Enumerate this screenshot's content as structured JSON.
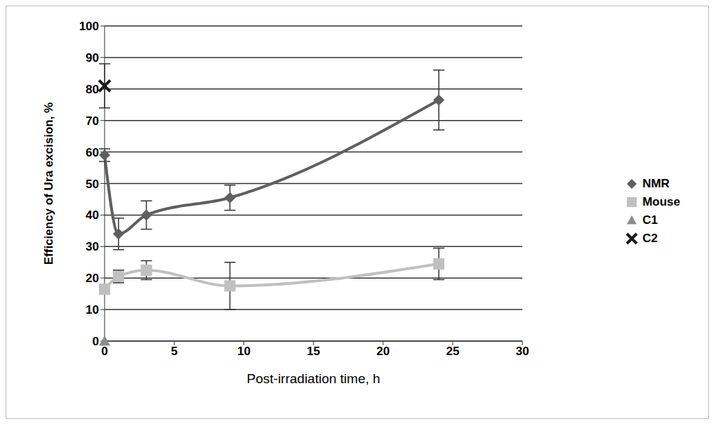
{
  "chart_data": {
    "type": "line",
    "x_label": "Post-irradiation time, h",
    "y_label": "Efficiency of Ura excision, %",
    "xlim": [
      0,
      30
    ],
    "xticks": [
      0,
      5,
      10,
      15,
      20,
      25,
      30
    ],
    "ylim": [
      0,
      100
    ],
    "yticks": [
      0,
      10,
      20,
      30,
      40,
      50,
      60,
      70,
      80,
      90,
      100
    ],
    "grid": true,
    "legend": "right",
    "series": [
      {
        "name": "NMR",
        "color": "#5f5f5f",
        "marker": "diamond",
        "line_style": "smooth",
        "x": [
          0,
          1,
          3,
          9,
          24
        ],
        "values": [
          59,
          34,
          40,
          45.5,
          76.5
        ],
        "errors": [
          2,
          5,
          4.5,
          4,
          9.5
        ]
      },
      {
        "name": "Mouse",
        "color": "#c0c0c0",
        "marker": "square",
        "line_style": "smooth",
        "x": [
          0,
          1,
          3,
          9,
          24
        ],
        "values": [
          16.5,
          20.5,
          22.5,
          17.5,
          24.5
        ],
        "errors": [
          1.5,
          2,
          3,
          7.5,
          5
        ]
      },
      {
        "name": "C1",
        "color": "#8c8c8c",
        "marker": "triangle",
        "line_style": "none",
        "x": [
          0
        ],
        "values": [
          0
        ]
      },
      {
        "name": "C2",
        "color": "#1a1a1a",
        "marker": "x",
        "line_style": "none",
        "x": [
          0
        ],
        "values": [
          81
        ],
        "errors": [
          7
        ]
      }
    ]
  }
}
